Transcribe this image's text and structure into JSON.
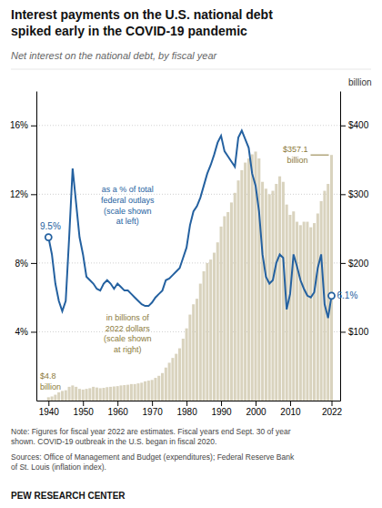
{
  "chart_data": {
    "type": "bar",
    "title": "Interest payments on the U.S. national debt\nspiked early in the COVID-19 pandemic",
    "subtitle": "Net interest on the national debt, by fiscal year",
    "x": [
      1940,
      1941,
      1942,
      1943,
      1944,
      1945,
      1946,
      1947,
      1948,
      1949,
      1950,
      1951,
      1952,
      1953,
      1954,
      1955,
      1956,
      1957,
      1958,
      1959,
      1960,
      1961,
      1962,
      1963,
      1964,
      1965,
      1966,
      1967,
      1968,
      1969,
      1970,
      1971,
      1972,
      1973,
      1974,
      1975,
      1976,
      1977,
      1978,
      1979,
      1980,
      1981,
      1982,
      1983,
      1984,
      1985,
      1986,
      1987,
      1988,
      1989,
      1990,
      1991,
      1992,
      1993,
      1994,
      1995,
      1996,
      1997,
      1998,
      1999,
      2000,
      2001,
      2002,
      2003,
      2004,
      2005,
      2006,
      2007,
      2008,
      2009,
      2010,
      2011,
      2012,
      2013,
      2014,
      2015,
      2016,
      2017,
      2018,
      2019,
      2020,
      2021,
      2022
    ],
    "xlim": [
      1936.5,
      2024.5
    ],
    "xticks": [
      1940,
      1950,
      1960,
      1970,
      1980,
      1990,
      2000,
      2010,
      2022
    ],
    "ylim": [
      0,
      18
    ],
    "yticks": [
      {
        "value": 4,
        "label": "4%"
      },
      {
        "value": 8,
        "label": "8%"
      },
      {
        "value": 12,
        "label": "12%"
      },
      {
        "value": 16,
        "label": "16%"
      }
    ],
    "y2lim": [
      0,
      450
    ],
    "y2ticks": [
      {
        "value": 100,
        "label": "$100"
      },
      {
        "value": 200,
        "label": "$200"
      },
      {
        "value": 300,
        "label": "$300"
      },
      {
        "value": 400,
        "label": "$400"
      }
    ],
    "y2label": "billion",
    "grid": true,
    "series": [
      {
        "type": "bar",
        "axis": "y2",
        "color": "#d9d3be",
        "values": [
          4.8,
          6.0,
          8.5,
          12.0,
          14.0,
          15.0,
          20.0,
          22.0,
          20.0,
          17.0,
          16.0,
          17.0,
          18.0,
          20.0,
          19.0,
          18.0,
          18.5,
          19.5,
          20.0,
          20.5,
          21.0,
          22.0,
          22.5,
          23.0,
          24.0,
          24.0,
          25.0,
          26.0,
          28.0,
          29.0,
          30.0,
          33.0,
          36.0,
          40.0,
          48.0,
          55.0,
          62.0,
          68.0,
          76.0,
          90.0,
          105.0,
          125.0,
          140.0,
          148.0,
          170.0,
          188.0,
          200.0,
          205.0,
          215.0,
          230.0,
          253.0,
          268.0,
          274.0,
          288.0,
          302.0,
          320.0,
          335.0,
          346.0,
          352.0,
          358.0,
          362.0,
          352.0,
          318.0,
          308.0,
          300.0,
          305.0,
          315.0,
          326.0,
          318.0,
          285.0,
          270.0,
          275.0,
          260.0,
          255.0,
          260.0,
          260.0,
          252.0,
          258.0,
          272.0,
          290.0,
          305.0,
          315.0,
          357.1
        ]
      },
      {
        "type": "line",
        "color": "#2461a0",
        "values": [
          9.5,
          8.5,
          6.8,
          5.8,
          5.2,
          5.8,
          9.5,
          13.5,
          11.5,
          9.5,
          8.5,
          7.2,
          7.0,
          6.8,
          6.5,
          6.4,
          6.8,
          7.0,
          6.8,
          6.5,
          6.8,
          6.6,
          6.4,
          6.4,
          6.2,
          6.0,
          5.8,
          5.6,
          5.5,
          5.5,
          5.7,
          6.0,
          6.2,
          6.4,
          7.0,
          7.1,
          7.3,
          7.5,
          7.7,
          8.3,
          8.9,
          10.2,
          11.0,
          11.3,
          11.8,
          12.5,
          13.2,
          13.7,
          14.3,
          15.0,
          15.4,
          14.5,
          14.2,
          13.9,
          13.6,
          15.3,
          15.7,
          15.2,
          14.7,
          13.2,
          12.5,
          11.0,
          8.5,
          7.2,
          6.8,
          7.0,
          8.0,
          8.5,
          8.3,
          5.3,
          6.2,
          8.5,
          7.8,
          7.0,
          6.5,
          6.1,
          6.0,
          6.3,
          7.7,
          8.5,
          5.6,
          4.8,
          6.1
        ]
      }
    ],
    "annotations": [
      {
        "text": "9.5%",
        "color": "#2461a0"
      },
      {
        "text": "6.1%",
        "color": "#2461a0"
      },
      {
        "text": "$4.8\nbillion",
        "color": "#8b7a3a"
      },
      {
        "text": "$357.1\nbillion",
        "color": "#8b7a3a"
      },
      {
        "text": "as a % of total\nfederal outlays\n(scale shown\nat left)",
        "color": "#2461a0"
      },
      {
        "text": "in billions of\n2022 dollars\n(scale shown\nat right)",
        "color": "#8b7a3a"
      }
    ],
    "note": "Note: Figures for fiscal year 2022 are estimates. Fiscal years end Sept. 30 of year\nshown. COVID-19 outbreak in the U.S. began in fiscal 2020.",
    "sources": "Sources: Office of Management and Budget (expenditures); Federal Reserve Bank\nof St. Louis (inflation index).",
    "footer": "PEW RESEARCH CENTER"
  }
}
